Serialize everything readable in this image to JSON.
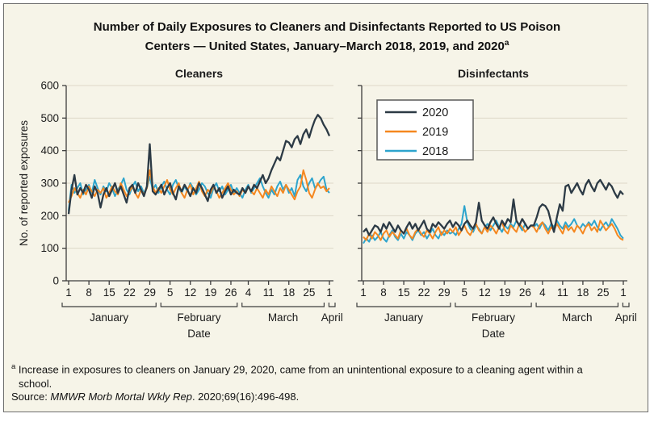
{
  "figure": {
    "title_line1": "Number of Daily Exposures to Cleaners and Disinfectants Reported to US Poison",
    "title_line2": "Centers — United States, January–March 2018, 2019, and 2020",
    "title_superscript": "a"
  },
  "y_axis": {
    "label": "No. of reported exposures",
    "ticks": [
      0,
      100,
      200,
      300,
      400,
      500,
      600
    ],
    "max": 600
  },
  "x_axis": {
    "label": "Date",
    "tick_labels": [
      "1",
      "8",
      "15",
      "22",
      "29",
      "5",
      "12",
      "19",
      "26",
      "4",
      "11",
      "18",
      "25",
      "1"
    ],
    "tick_days": [
      0,
      7,
      14,
      21,
      28,
      35,
      42,
      49,
      56,
      62,
      69,
      76,
      83,
      90
    ],
    "month_groups": [
      {
        "label": "January",
        "start": 0,
        "end": 31
      },
      {
        "label": "February",
        "start": 31,
        "end": 59
      },
      {
        "label": "March",
        "start": 59,
        "end": 89
      },
      {
        "label": "April",
        "start": 89,
        "end": 90
      }
    ]
  },
  "legend": {
    "entries": [
      {
        "label": "2020",
        "color": "#2c3a45"
      },
      {
        "label": "2019",
        "color": "#f5871f"
      },
      {
        "label": "2018",
        "color": "#2da4cd"
      }
    ]
  },
  "chart_data": [
    {
      "type": "line",
      "title": "Cleaners",
      "x_description": "Daily, January 1 through April 1",
      "ylim": [
        0,
        600
      ],
      "grid": true,
      "series": [
        {
          "name": "2020",
          "color": "#2c3a45",
          "values": [
            205,
            280,
            325,
            265,
            285,
            270,
            295,
            280,
            255,
            290,
            270,
            225,
            265,
            285,
            260,
            280,
            300,
            270,
            290,
            265,
            240,
            285,
            295,
            270,
            300,
            280,
            260,
            290,
            420,
            275,
            265,
            280,
            295,
            265,
            285,
            300,
            270,
            250,
            290,
            275,
            295,
            280,
            260,
            285,
            270,
            300,
            285,
            265,
            245,
            280,
            295,
            270,
            285,
            255,
            275,
            290,
            265,
            280,
            270,
            265,
            285,
            270,
            290,
            275,
            295,
            285,
            305,
            325,
            300,
            315,
            340,
            360,
            380,
            370,
            400,
            430,
            425,
            410,
            435,
            445,
            420,
            450,
            465,
            440,
            470,
            495,
            510,
            500,
            480,
            465,
            445
          ]
        },
        {
          "name": "2019",
          "color": "#f5871f",
          "values": [
            240,
            260,
            285,
            270,
            255,
            280,
            265,
            290,
            275,
            260,
            280,
            270,
            285,
            255,
            270,
            290,
            275,
            265,
            300,
            280,
            260,
            275,
            290,
            270,
            255,
            280,
            265,
            285,
            340,
            290,
            270,
            285,
            270,
            290,
            310,
            280,
            265,
            285,
            300,
            270,
            255,
            280,
            295,
            265,
            285,
            305,
            275,
            260,
            280,
            270,
            290,
            275,
            255,
            270,
            285,
            300,
            280,
            265,
            275,
            260,
            280,
            270,
            290,
            275,
            265,
            285,
            270,
            255,
            280,
            265,
            290,
            275,
            260,
            285,
            270,
            295,
            280,
            265,
            250,
            275,
            290,
            340,
            310,
            270,
            255,
            280,
            300,
            285,
            290,
            275,
            285
          ]
        },
        {
          "name": "2018",
          "color": "#2da4cd",
          "values": [
            215,
            295,
            270,
            285,
            300,
            265,
            280,
            295,
            270,
            310,
            285,
            265,
            290,
            275,
            300,
            285,
            260,
            280,
            295,
            315,
            280,
            265,
            290,
            305,
            275,
            290,
            270,
            285,
            320,
            280,
            295,
            270,
            290,
            305,
            280,
            265,
            295,
            310,
            285,
            270,
            290,
            275,
            300,
            285,
            265,
            280,
            300,
            290,
            270,
            255,
            285,
            300,
            275,
            290,
            265,
            280,
            295,
            270,
            285,
            270,
            255,
            280,
            295,
            270,
            285,
            300,
            315,
            290,
            270,
            255,
            280,
            265,
            290,
            305,
            280,
            295,
            270,
            285,
            260,
            310,
            325,
            290,
            275,
            300,
            315,
            285,
            295,
            310,
            320,
            280,
            270
          ]
        }
      ]
    },
    {
      "type": "line",
      "title": "Disinfectants",
      "x_description": "Daily, January 1 through April 1",
      "ylim": [
        0,
        600
      ],
      "grid": true,
      "series": [
        {
          "name": "2020",
          "color": "#2c3a45",
          "values": [
            150,
            160,
            140,
            155,
            170,
            165,
            150,
            175,
            160,
            180,
            165,
            150,
            170,
            155,
            145,
            165,
            180,
            160,
            175,
            155,
            170,
            185,
            160,
            150,
            175,
            165,
            180,
            170,
            160,
            175,
            185,
            165,
            180,
            170,
            155,
            175,
            185,
            170,
            160,
            180,
            240,
            185,
            170,
            160,
            180,
            195,
            175,
            160,
            185,
            170,
            190,
            180,
            250,
            185,
            170,
            190,
            175,
            160,
            170,
            170,
            195,
            225,
            235,
            230,
            215,
            180,
            150,
            195,
            235,
            215,
            290,
            295,
            270,
            285,
            300,
            280,
            265,
            295,
            310,
            290,
            275,
            300,
            310,
            295,
            280,
            300,
            290,
            270,
            255,
            275,
            265
          ]
        },
        {
          "name": "2019",
          "color": "#f5871f",
          "values": [
            135,
            125,
            145,
            130,
            150,
            140,
            125,
            145,
            155,
            135,
            150,
            140,
            130,
            155,
            145,
            160,
            140,
            130,
            150,
            160,
            145,
            135,
            155,
            145,
            130,
            150,
            165,
            140,
            155,
            145,
            160,
            150,
            165,
            140,
            155,
            170,
            150,
            140,
            160,
            175,
            155,
            145,
            165,
            150,
            170,
            160,
            145,
            165,
            180,
            155,
            145,
            170,
            160,
            150,
            175,
            165,
            150,
            160,
            170,
            165,
            150,
            170,
            180,
            160,
            145,
            165,
            155,
            175,
            160,
            145,
            170,
            155,
            165,
            150,
            170,
            160,
            145,
            165,
            175,
            155,
            165,
            150,
            185,
            170,
            155,
            165,
            175,
            160,
            140,
            130,
            125
          ]
        },
        {
          "name": "2018",
          "color": "#2da4cd",
          "values": [
            115,
            130,
            120,
            140,
            125,
            135,
            150,
            130,
            120,
            140,
            155,
            135,
            125,
            145,
            130,
            150,
            140,
            125,
            145,
            155,
            140,
            150,
            130,
            145,
            160,
            140,
            130,
            150,
            140,
            155,
            145,
            150,
            140,
            160,
            175,
            230,
            180,
            160,
            150,
            170,
            160,
            145,
            165,
            175,
            155,
            170,
            185,
            165,
            150,
            170,
            160,
            175,
            165,
            185,
            170,
            155,
            175,
            160,
            170,
            165,
            175,
            160,
            180,
            170,
            155,
            175,
            165,
            185,
            170,
            160,
            180,
            165,
            175,
            190,
            170,
            160,
            175,
            165,
            180,
            170,
            185,
            165,
            155,
            170,
            180,
            165,
            190,
            175,
            160,
            140,
            130
          ]
        }
      ]
    }
  ],
  "footnote": {
    "marker": "a",
    "text": "Increase in exposures to cleaners on January 29, 2020, came from an unintentional exposure to a cleaning agent within a school."
  },
  "source": {
    "prefix": "Source: ",
    "journal": "MMWR Morb Mortal Wkly Rep",
    "suffix": ". 2020;69(16):496-498."
  },
  "colors": {
    "background": "#f6f4e8",
    "border": "#6e6e6e",
    "grid": "#ddd8c8",
    "axis": "#3d3d3d",
    "text": "#1a1a1a",
    "legend_bg": "#ffffff",
    "legend_border": "#595959"
  }
}
